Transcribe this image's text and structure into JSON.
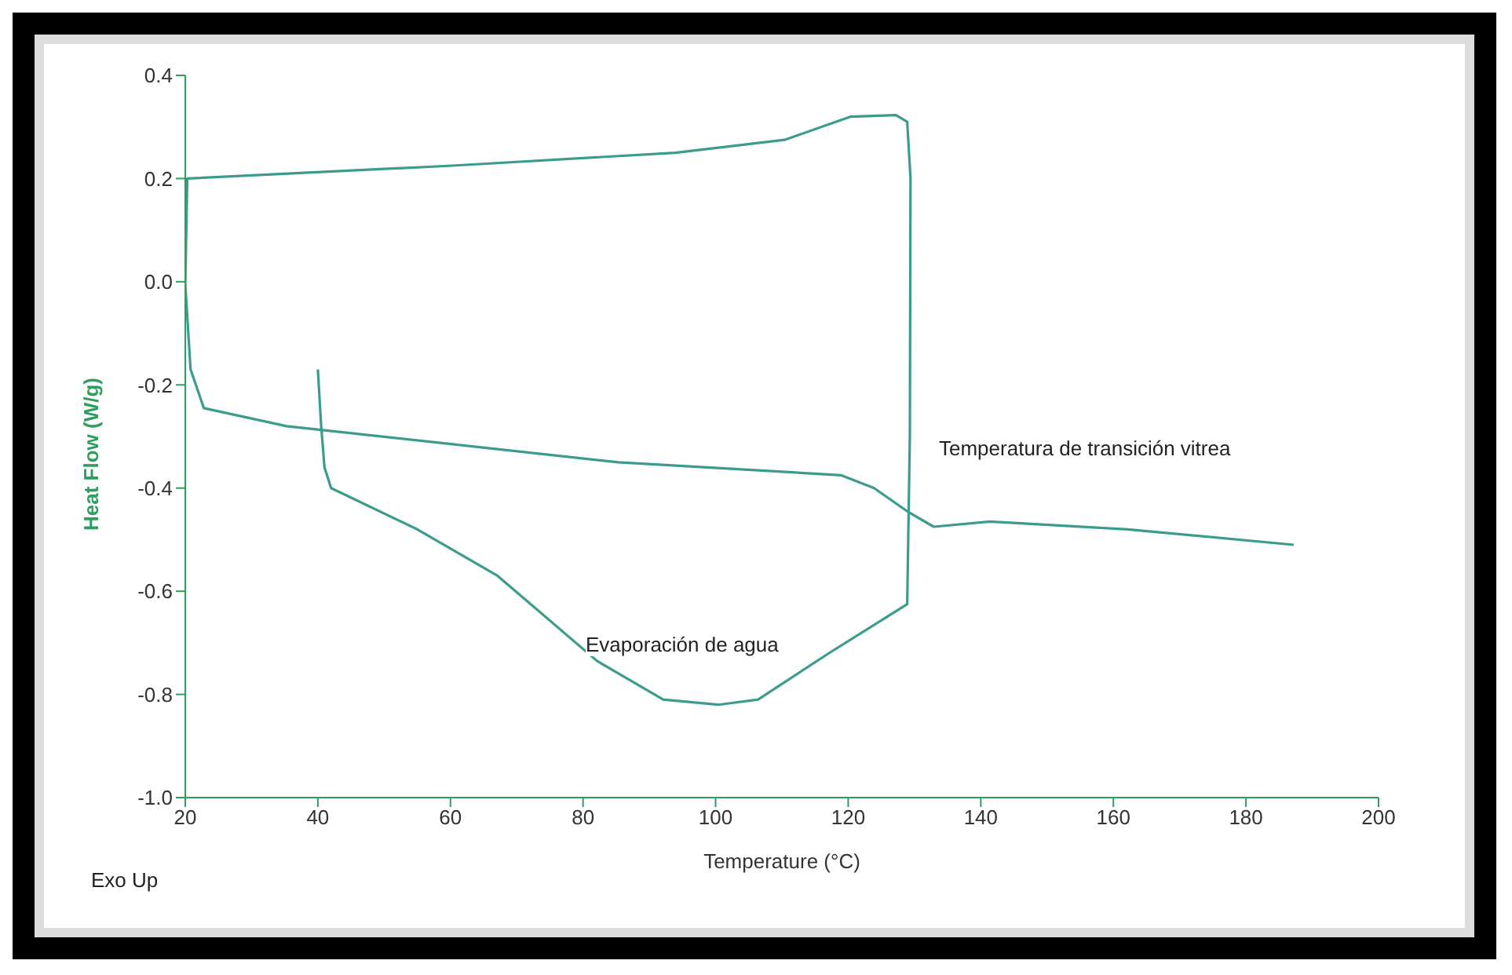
{
  "chart_data": {
    "type": "line",
    "xlabel": "Temperature (°C)",
    "ylabel": "Heat Flow (W/g)",
    "xlim": [
      20,
      200
    ],
    "xticks": [
      20,
      40,
      60,
      80,
      100,
      120,
      140,
      160,
      180,
      200
    ],
    "ylim": [
      -1.0,
      0.4
    ],
    "yticks": [
      {
        "value": -1.0,
        "label": "-1.0"
      },
      -0.8,
      -0.6,
      -0.4,
      -0.2,
      {
        "value": 0,
        "label": "0.0"
      },
      0.2,
      0.4
    ],
    "grid": false,
    "legend": false,
    "marker": "none",
    "line_style": "solid",
    "series": [
      {
        "color": "#3c9c8c",
        "x": [
          40,
          40.5,
          41,
          42,
          55,
          67.1,
          82.1,
          92.1,
          100.4,
          106.4,
          117.1,
          128.9,
          129.3,
          129.4,
          128.9,
          127.2,
          120.4,
          110.4,
          93.9,
          60.3,
          20.3,
          20,
          20.8,
          22.8,
          35.3,
          85.3,
          118.9,
          123.9,
          128.9,
          132.9,
          141.4,
          162.2,
          187.2
        ],
        "values": [
          -0.17,
          -0.28,
          -0.36,
          -0.4,
          -0.48,
          -0.57,
          -0.735,
          -0.81,
          -0.82,
          -0.81,
          -0.72,
          -0.625,
          -0.3,
          0.2,
          0.31,
          0.323,
          0.32,
          0.275,
          0.25,
          0.225,
          0.2,
          -0.005,
          -0.17,
          -0.245,
          -0.28,
          -0.35,
          -0.375,
          -0.4,
          -0.445,
          -0.475,
          -0.465,
          -0.48,
          -0.51
        ]
      }
    ],
    "annotations": [
      "Evaporación de agua",
      "Temperatura de transición vitrea",
      "Exo Up"
    ]
  }
}
